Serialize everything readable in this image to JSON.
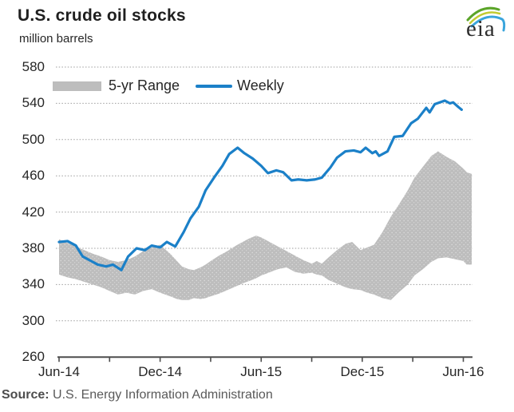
{
  "title": "U.S. crude oil stocks",
  "subtitle": "million barrels",
  "legend": {
    "range_label": "5-yr Range",
    "weekly_label": "Weekly"
  },
  "source": {
    "prefix": "Source:",
    "text": "U.S. Energy Information Administration"
  },
  "logo": {
    "text": "eia"
  },
  "colors": {
    "weekly_line": "#1b80c8",
    "range_band": "#bdbdbd",
    "gridline": "#9e9e9e",
    "axis": "#4d4d4d",
    "text": "#262626",
    "source_text": "#595959",
    "logo_green": "#5ba529",
    "logo_yellow": "#c2cc33",
    "logo_blue": "#3aa5dc"
  },
  "chart_data": {
    "type": "area+line",
    "title": "U.S. crude oil stocks",
    "ylabel": "million barrels",
    "ylim": [
      260,
      580
    ],
    "yticks": [
      580,
      540,
      500,
      460,
      420,
      380,
      340,
      300,
      260
    ],
    "x_unit": "months since Jun-2014",
    "xlim_months": [
      0,
      24.55
    ],
    "xticks_every_3_months": true,
    "xtick_labels": [
      "Jun-14",
      "Dec-14",
      "Jun-15",
      "Dec-15",
      "Jun-16"
    ],
    "grid": "dotted horizontal",
    "legend_position": "top-left inside",
    "series": [
      {
        "name": "5-yr Range",
        "type": "band",
        "x": [
          0,
          0.5,
          1,
          1.5,
          2,
          2.5,
          3,
          3.5,
          4,
          4.5,
          5,
          5.5,
          6,
          6.3,
          6.6,
          7,
          7.3,
          7.7,
          8,
          8.4,
          8.7,
          9,
          9.5,
          10,
          10.5,
          11,
          11.3,
          11.7,
          12,
          12.3,
          12.7,
          13,
          13.5,
          14,
          14.5,
          15,
          15.3,
          15.6,
          16,
          16.5,
          17,
          17.4,
          17.9,
          18.3,
          18.7,
          19.2,
          19.7,
          20.2,
          20.7,
          21.1,
          21.6,
          22.1,
          22.5,
          23.0,
          23.5,
          24.0,
          24.2,
          24.5
        ],
        "top": [
          390,
          386,
          382,
          378,
          374,
          371,
          367,
          365,
          367,
          371,
          377,
          381,
          384,
          379,
          374,
          366,
          360,
          357,
          356,
          359,
          362,
          366,
          372,
          377,
          383,
          388,
          391,
          394,
          392,
          389,
          385,
          382,
          377,
          372,
          367,
          363,
          366,
          363,
          370,
          378,
          385,
          387,
          378,
          381,
          384,
          398,
          415,
          429,
          444,
          458,
          470,
          482,
          487,
          481,
          476,
          468,
          464,
          462
        ],
        "bottom": [
          351,
          348,
          346,
          343,
          340,
          337,
          333,
          329,
          331,
          329,
          333,
          335,
          331,
          329,
          327,
          324,
          323,
          323,
          325,
          324,
          325,
          327,
          330,
          334,
          338,
          342,
          344,
          347,
          350,
          352,
          355,
          357,
          359,
          354,
          352,
          353,
          351,
          350,
          345,
          341,
          337,
          335,
          334,
          331,
          329,
          325,
          323,
          332,
          340,
          350,
          357,
          365,
          369,
          370,
          368,
          366,
          362,
          362
        ]
      },
      {
        "name": "Weekly",
        "type": "line",
        "x": [
          0,
          0.5,
          1,
          1.4,
          1.9,
          2.3,
          2.8,
          3.2,
          3.7,
          4.1,
          4.6,
          5.1,
          5.5,
          6.0,
          6.4,
          6.9,
          7.4,
          7.8,
          8.3,
          8.7,
          9.2,
          9.7,
          10.1,
          10.6,
          11.0,
          11.5,
          12.0,
          12.4,
          12.9,
          13.3,
          13.8,
          14.2,
          14.7,
          15.2,
          15.6,
          16.1,
          16.5,
          17.0,
          17.5,
          17.9,
          18.2,
          18.6,
          18.8,
          19.0,
          19.5,
          19.9,
          20.4,
          20.9,
          21.3,
          21.8,
          22.0,
          22.3,
          22.9,
          23.2,
          23.4,
          23.7,
          23.9
        ],
        "y": [
          387,
          388,
          383,
          371,
          366,
          362,
          360,
          362,
          356,
          371,
          380,
          378,
          383,
          381,
          387,
          382,
          398,
          413,
          426,
          444,
          458,
          471,
          484,
          491,
          485,
          479,
          471,
          463,
          466,
          464,
          455,
          456,
          455,
          456,
          458,
          469,
          480,
          487,
          488,
          486,
          491,
          485,
          487,
          482,
          487,
          503,
          504,
          518,
          523,
          535,
          530,
          539,
          543,
          540,
          541,
          536,
          533
        ]
      }
    ]
  }
}
